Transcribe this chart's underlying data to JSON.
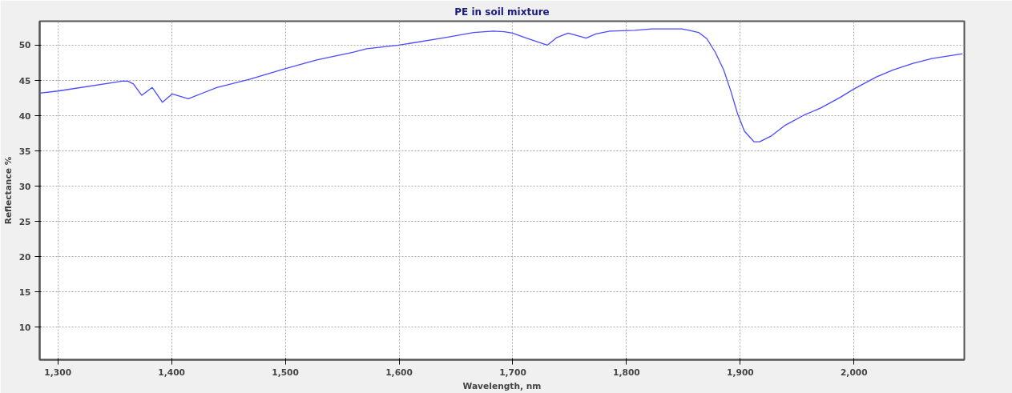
{
  "chart_data": {
    "type": "line",
    "title": "PE in soil mixture",
    "xlabel": "Wavelength, nm",
    "ylabel": "Reflectance %",
    "xlim": [
      1284,
      2097
    ],
    "ylim": [
      5.4,
      53.4
    ],
    "xticks": [
      {
        "value": 1300,
        "label": "1,300"
      },
      {
        "value": 1400,
        "label": "1,400"
      },
      {
        "value": 1500,
        "label": "1,500"
      },
      {
        "value": 1600,
        "label": "1,600"
      },
      {
        "value": 1700,
        "label": "1,700"
      },
      {
        "value": 1800,
        "label": "1,800"
      },
      {
        "value": 1900,
        "label": "1,900"
      },
      {
        "value": 2000,
        "label": "2,000"
      }
    ],
    "yticks": [
      10,
      15,
      20,
      25,
      30,
      35,
      40,
      45,
      50
    ],
    "grid": true,
    "marker": "none",
    "line_style": "solid",
    "series": [
      {
        "color": "#4a4aff",
        "x": [
          1284,
          1300,
          1356.7,
          1361.5,
          1366.4,
          1373.8,
          1383,
          1392,
          1400.6,
          1414.6,
          1439.7,
          1469,
          1500.3,
          1527.6,
          1559.3,
          1571.6,
          1599.6,
          1641,
          1665.6,
          1682.7,
          1692.5,
          1699.8,
          1712,
          1730.3,
          1738.8,
          1748.6,
          1764.5,
          1773,
          1785.3,
          1807.3,
          1822,
          1848.7,
          1855,
          1863.4,
          1870.7,
          1878,
          1885.4,
          1891.5,
          1897.6,
          1903.7,
          1912.2,
          1917,
          1926.9,
          1939,
          1956.2,
          1970.8,
          1987.9,
          2000,
          2019.7,
          2034.4,
          2051.4,
          2068.5,
          2095.4
        ],
        "values": [
          43.2,
          43.5,
          44.9,
          44.9,
          44.5,
          42.9,
          44.0,
          41.9,
          43.1,
          42.4,
          44.0,
          45.2,
          46.7,
          47.9,
          49.0,
          49.5,
          50.0,
          51.1,
          51.8,
          52.0,
          51.9,
          51.7,
          51.0,
          50.0,
          51.1,
          51.7,
          51.0,
          51.6,
          52.0,
          52.1,
          52.3,
          52.3,
          52.1,
          51.8,
          50.9,
          49.0,
          46.5,
          43.6,
          40.3,
          37.8,
          36.3,
          36.3,
          37.1,
          38.6,
          40.1,
          41.1,
          42.6,
          43.8,
          45.5,
          46.5,
          47.4,
          48.1,
          48.8
        ]
      }
    ]
  }
}
